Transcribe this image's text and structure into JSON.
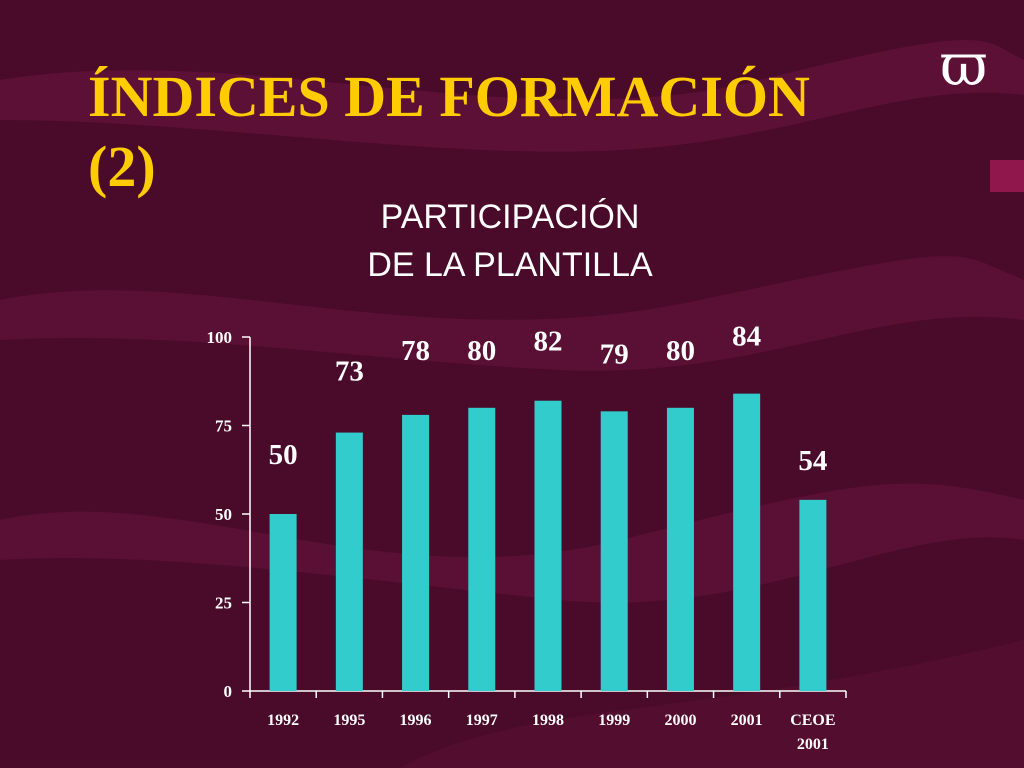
{
  "slide": {
    "title_line1": "ÍNDICES DE FORMACIÓN",
    "title_line2": "(2)",
    "logo_glyph": "ϖ",
    "subtitle_line1": "PARTICIPACIÓN",
    "subtitle_line2": "DE LA PLANTILLA"
  },
  "colors": {
    "background": "#4a0b2a",
    "title": "#ffcc00",
    "bar": "#33cccc",
    "text": "#ffffff"
  },
  "chart_data": {
    "type": "bar",
    "categories": [
      "1992",
      "1995",
      "1996",
      "1997",
      "1998",
      "1999",
      "2000",
      "2001",
      "CEOE 2001"
    ],
    "values": [
      50,
      73,
      78,
      80,
      82,
      79,
      80,
      84,
      54
    ],
    "title": "PARTICIPACIÓN DE LA PLANTILLA",
    "xlabel": "",
    "ylabel": "",
    "ylim": [
      0,
      100
    ],
    "yticks": [
      0,
      25,
      50,
      75,
      100
    ],
    "grid": false,
    "legend": "none"
  }
}
